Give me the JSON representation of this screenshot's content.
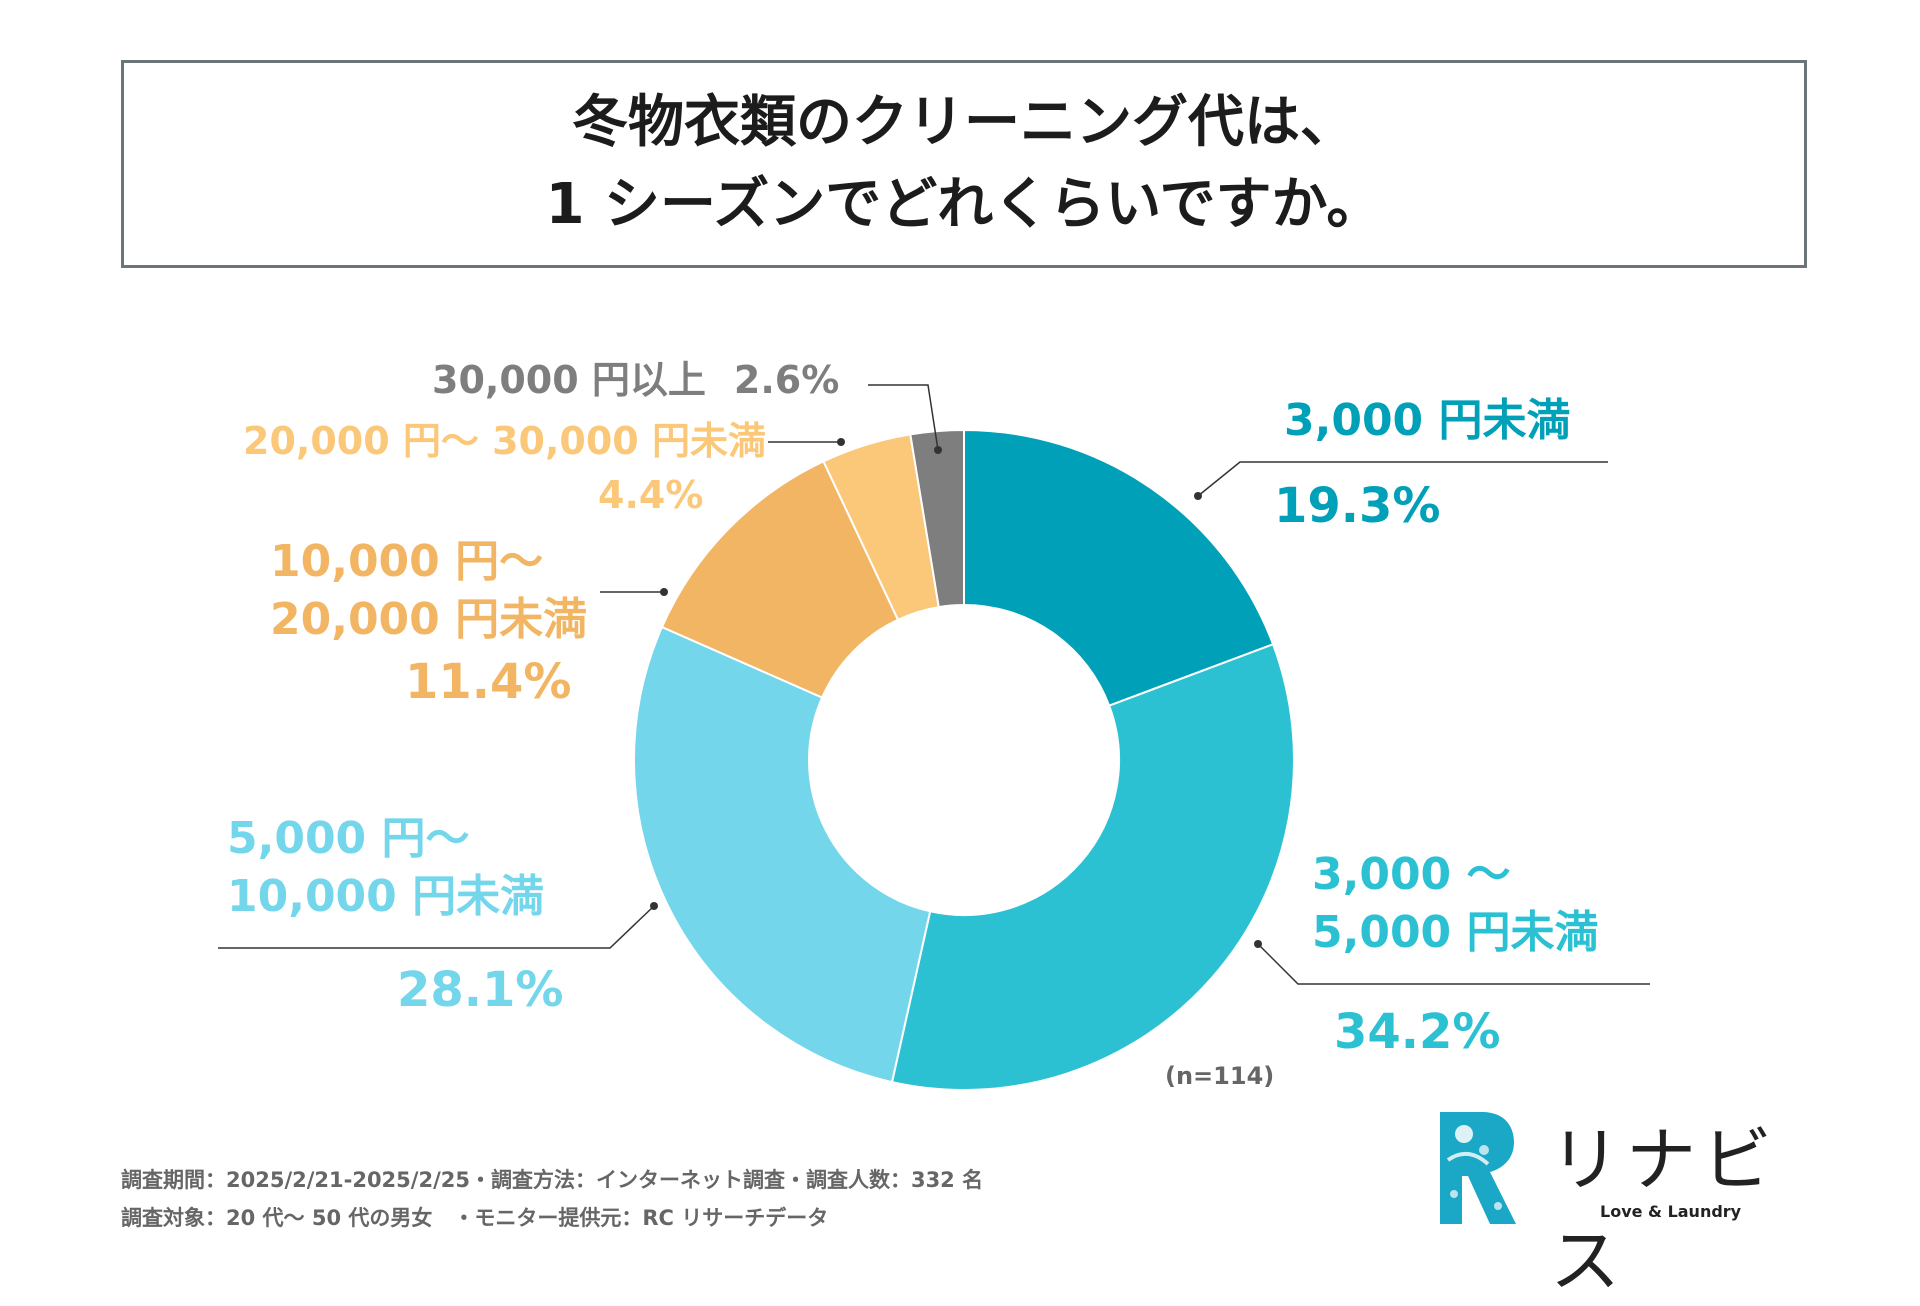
{
  "title": {
    "line1": "冬物衣類のクリーニング代は、",
    "line2": "1 シーズンでどれくらいですか。"
  },
  "chart_data": {
    "type": "pie",
    "style": "donut",
    "title": "冬物衣類のクリーニング代は、1 シーズンでどれくらいですか。",
    "slices": [
      {
        "id": "s1",
        "name": "3,000 円未満",
        "lines": [
          "3,000 円未満"
        ],
        "pct_label": "19.3%",
        "value": 19.3,
        "color": "#00a0b8"
      },
      {
        "id": "s2",
        "name": "3,000 ～ 5,000 円未満",
        "lines": [
          "3,000 ～",
          "5,000 円未満"
        ],
        "pct_label": "34.2%",
        "value": 34.2,
        "color": "#2bc1d3"
      },
      {
        "id": "s3",
        "name": "5,000 円～ 10,000 円未満",
        "lines": [
          "5,000 円～",
          "10,000 円未満"
        ],
        "pct_label": "28.1%",
        "value": 28.1,
        "color": "#74d6ea"
      },
      {
        "id": "s4",
        "name": "10,000 円～ 20,000 円未満",
        "lines": [
          "10,000 円～",
          "20,000 円未満"
        ],
        "pct_label": "11.4%",
        "value": 11.4,
        "color": "#f2b564"
      },
      {
        "id": "s5",
        "name": "20,000 円～ 30,000 円未満",
        "lines": [
          "20,000 円～ 30,000 円未満"
        ],
        "pct_label": "4.4%",
        "value": 4.4,
        "color": "#fbc87a"
      },
      {
        "id": "s6",
        "name": "30,000 円以上",
        "lines": [
          "30,000 円以上"
        ],
        "pct_label": "2.6%",
        "value": 2.6,
        "color": "#7e7e7e"
      }
    ],
    "sample_note": "(n=114)"
  },
  "footer": {
    "line1": "調査期間：2025/2/21-2025/2/25・調査方法：インターネット調査・調査人数：332 名",
    "line2": "調査対象：20 代～ 50 代の男女　・モニター提供元：RC リサーチデータ"
  },
  "logo": {
    "name": "リナビス",
    "tagline": "Love & Laundry"
  }
}
